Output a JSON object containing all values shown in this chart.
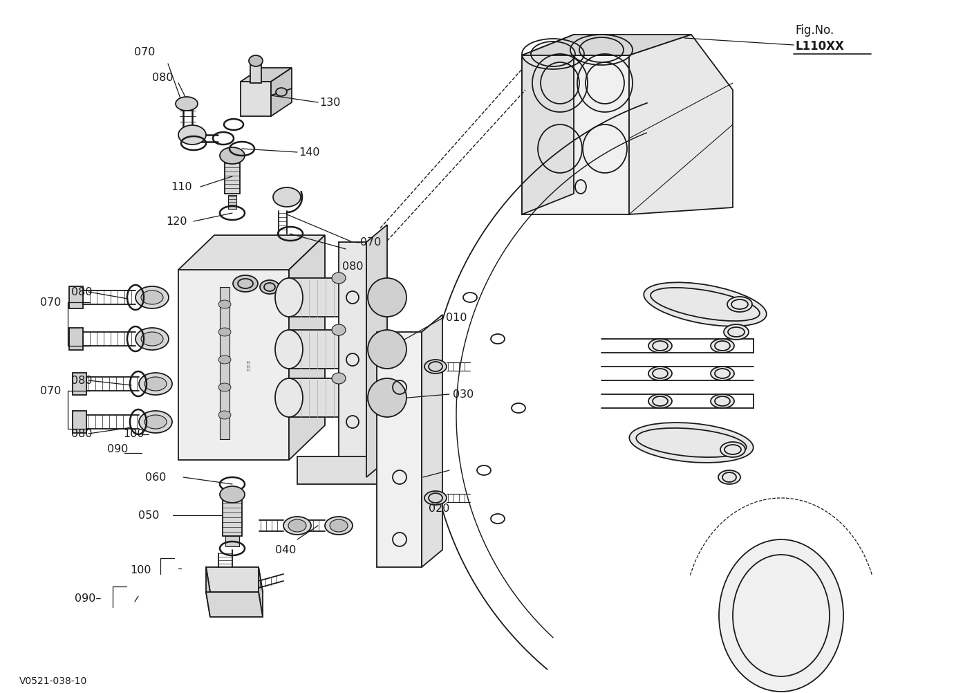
{
  "bg": "#ffffff",
  "fg": "#1a1a1a",
  "fig_no_line1": "Fig.No.",
  "fig_no_line2": "L110XX",
  "bottom_label": "V0521-038-10",
  "label_fontsize": 11.5
}
